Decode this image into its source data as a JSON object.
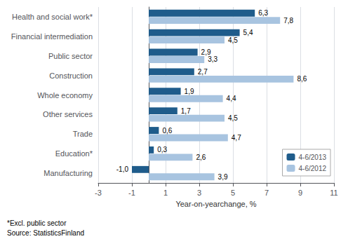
{
  "chart_data": {
    "type": "bar",
    "orientation": "horizontal",
    "xlabel": "Year-on-yearchange, %",
    "categories": [
      "Health and social work*",
      "Financial intermediation",
      "Public sector",
      "Construction",
      "Whole economy",
      "Other services",
      "Trade",
      "Education*",
      "Manufacturing"
    ],
    "series": [
      {
        "name": "4-6/2013",
        "color": "#1F5C8B",
        "values": [
          6.3,
          5.4,
          2.9,
          2.7,
          1.9,
          1.7,
          0.6,
          0.3,
          -1.0
        ],
        "value_labels": [
          "6,3",
          "5,4",
          "2,9",
          "2,7",
          "1,9",
          "1,7",
          "0,6",
          "0,3",
          "-1,0"
        ]
      },
      {
        "name": "4-6/2012",
        "color": "#A8C4E0",
        "values": [
          7.8,
          4.5,
          3.3,
          8.6,
          4.4,
          4.5,
          4.7,
          2.6,
          3.9
        ],
        "value_labels": [
          "7,8",
          "4,5",
          "3,3",
          "8,6",
          "4,4",
          "4,5",
          "4,7",
          "2,6",
          "3,9"
        ]
      }
    ],
    "xlim": [
      -3,
      11
    ],
    "xticks": [
      -3,
      -1,
      1,
      3,
      5,
      7,
      9,
      11
    ],
    "grid": true,
    "legend": "lower right",
    "data_labels": true,
    "annotations": [
      "*Excl. public sector",
      "Source: StatisticsFinland"
    ]
  }
}
